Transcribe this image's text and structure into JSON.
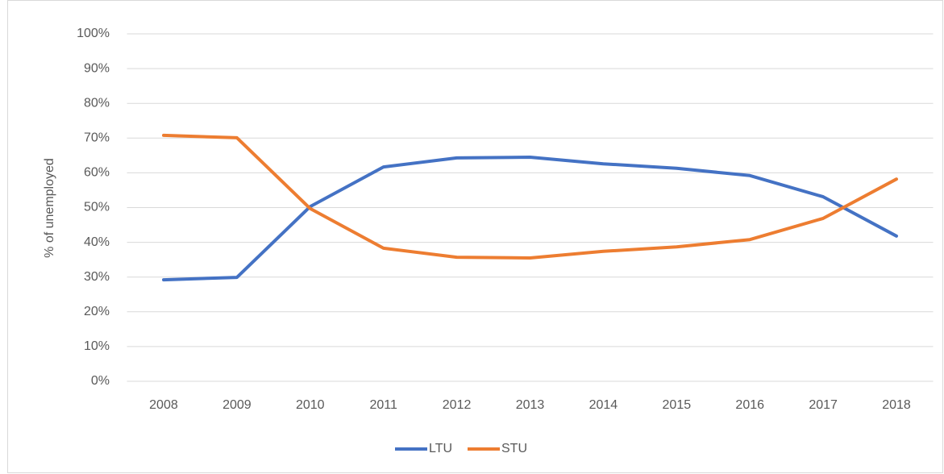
{
  "chart_data": {
    "type": "line",
    "y_label": "% of unemployed",
    "categories": [
      "2008",
      "2009",
      "2010",
      "2011",
      "2012",
      "2013",
      "2014",
      "2015",
      "2016",
      "2017",
      "2018"
    ],
    "series": [
      {
        "name": "LTU",
        "color": "#4472c4",
        "values": [
          29.2,
          29.9,
          50.3,
          61.7,
          64.3,
          64.5,
          62.6,
          61.3,
          59.2,
          53.1,
          41.8
        ]
      },
      {
        "name": "STU",
        "color": "#ed7d31",
        "values": [
          70.8,
          70.1,
          49.7,
          38.3,
          35.7,
          35.5,
          37.4,
          38.7,
          40.8,
          46.9,
          58.2
        ]
      }
    ],
    "ylim": [
      0,
      100
    ],
    "yticks": [
      {
        "value": 0,
        "label": "0%"
      },
      {
        "value": 10,
        "label": "10%"
      },
      {
        "value": 20,
        "label": "20%"
      },
      {
        "value": 30,
        "label": "30%"
      },
      {
        "value": 40,
        "label": "40%"
      },
      {
        "value": 50,
        "label": "50%"
      },
      {
        "value": 60,
        "label": "60%"
      },
      {
        "value": 70,
        "label": "70%"
      },
      {
        "value": 80,
        "label": "80%"
      },
      {
        "value": 90,
        "label": "90%"
      },
      {
        "value": 100,
        "label": "100%"
      }
    ],
    "grid": true,
    "legend": "bottom"
  }
}
